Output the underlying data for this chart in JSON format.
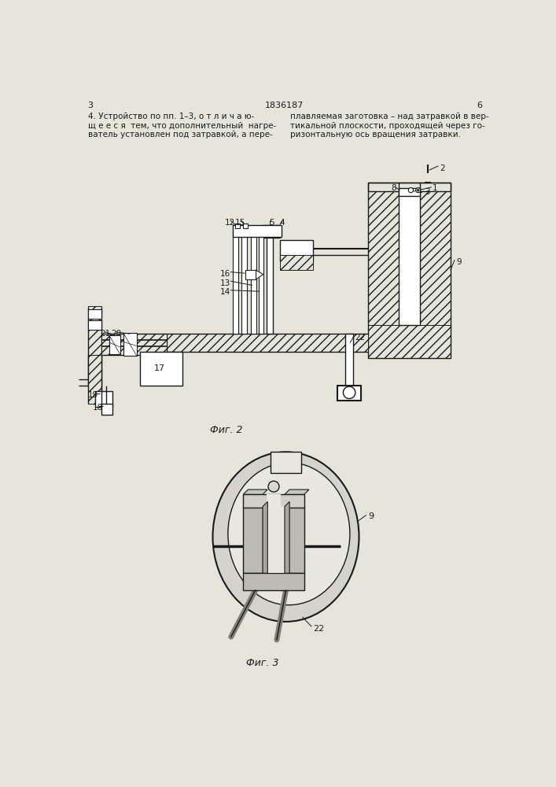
{
  "bg_color": "#e5e5dc",
  "line_color": "#1a1a1a",
  "text_color": "#1a1a1a",
  "page_header": "1836187",
  "page_left": "3",
  "page_right": "6",
  "text_col1": "4. Устройство по пп. 1–3, о т л и ч а ю-\nщ е е с я  тем, что дополнительный  нагре-\nватель установлен под затравкой, а пере-",
  "text_col2": "плавляемая заготовка – над затравкой в вер-\nтикальной плоскости, проходящей через го-\nризонтальную ось вращения затравки.",
  "fig2_caption": "Фиг. 2",
  "fig3_caption": "Фиг. 3"
}
